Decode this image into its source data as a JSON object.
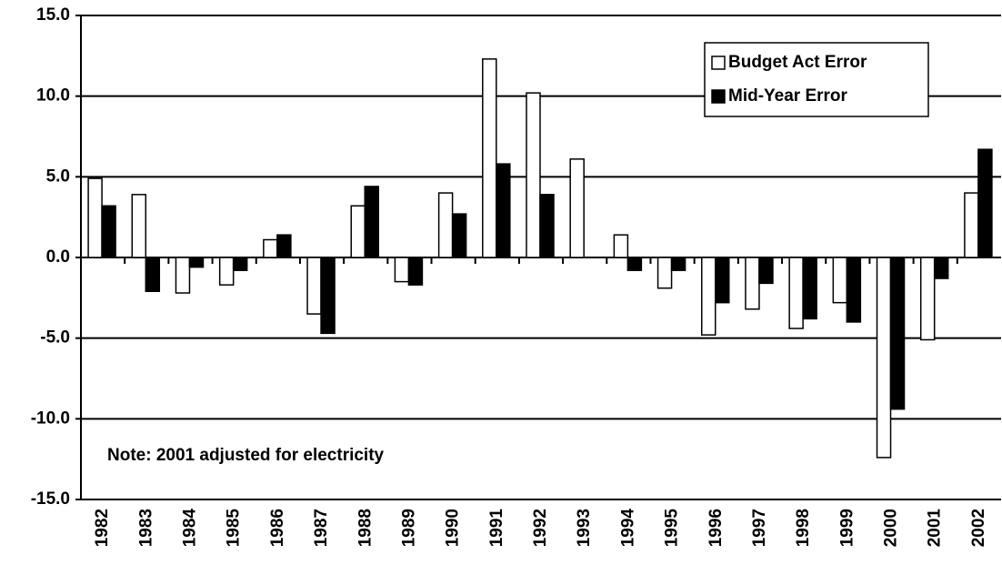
{
  "chart_data": {
    "type": "bar",
    "annotation": "Note: 2001 adjusted for electricity",
    "categories": [
      "1982",
      "1983",
      "1984",
      "1985",
      "1986",
      "1987",
      "1988",
      "1989",
      "1990",
      "1991",
      "1992",
      "1993",
      "1994",
      "1995",
      "1996",
      "1997",
      "1998",
      "1999",
      "2000",
      "2001",
      "2002"
    ],
    "series": [
      {
        "name": "Budget Act Error",
        "color": "#ffffff",
        "values": [
          4.9,
          3.9,
          -2.2,
          -1.7,
          1.1,
          -3.5,
          3.2,
          -1.5,
          4.0,
          12.3,
          10.2,
          6.1,
          1.4,
          -1.9,
          -4.8,
          -3.2,
          -4.4,
          -2.8,
          -12.4,
          -5.1,
          4.0
        ]
      },
      {
        "name": "Mid-Year Error",
        "color": "#000000",
        "values": [
          3.2,
          -2.1,
          -0.6,
          -0.8,
          1.4,
          -4.7,
          4.4,
          -1.7,
          2.7,
          5.8,
          3.9,
          null,
          -0.8,
          -0.8,
          -2.8,
          -1.6,
          -3.8,
          -4.0,
          -9.4,
          -1.3,
          6.7
        ]
      }
    ],
    "ylim": [
      -15,
      15
    ],
    "yticks": [
      {
        "value": -15,
        "label": "-15.0"
      },
      {
        "value": -10,
        "label": "-10.0"
      },
      {
        "value": -5,
        "label": "-5.0"
      },
      {
        "value": 0,
        "label": "0.0"
      },
      {
        "value": 5,
        "label": "5.0"
      },
      {
        "value": 10,
        "label": "10.0"
      },
      {
        "value": 15,
        "label": "15.0"
      }
    ],
    "grid": true,
    "legend": "upper right"
  }
}
